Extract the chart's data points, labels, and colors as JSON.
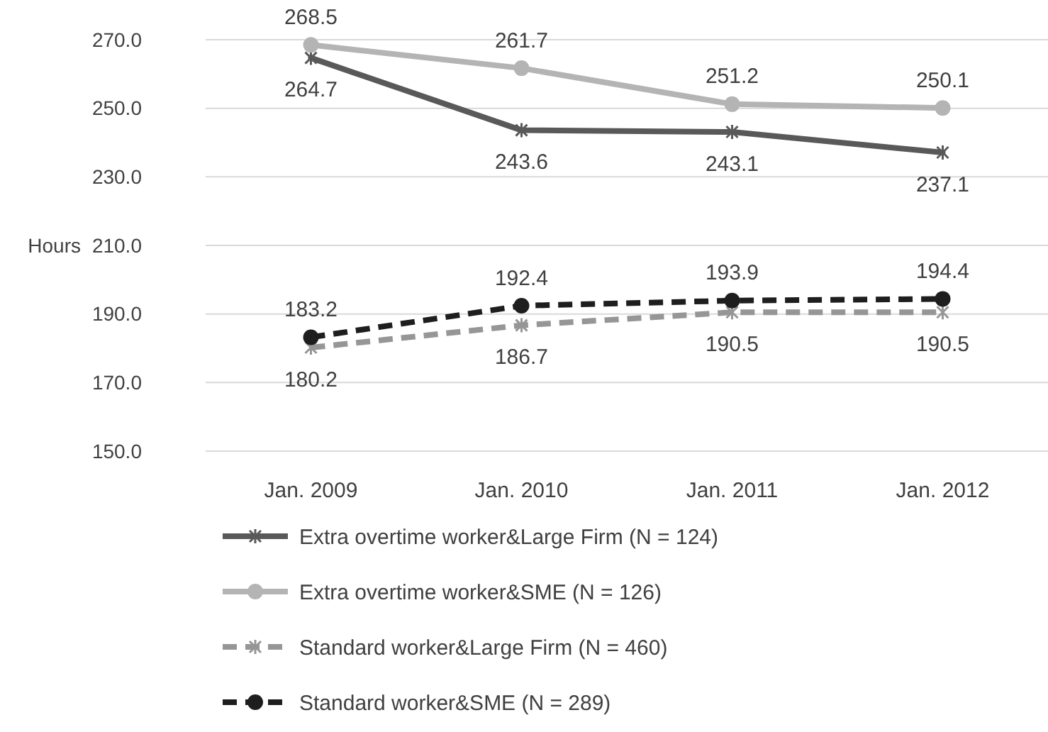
{
  "chart_data": {
    "type": "line",
    "ylabel": "Hours",
    "categories": [
      "Jan. 2009",
      "Jan. 2010",
      "Jan. 2011",
      "Jan. 2012"
    ],
    "ylim": [
      150,
      270
    ],
    "yticks": [
      {
        "value": 150,
        "label": "150.0"
      },
      {
        "value": 170,
        "label": "170.0"
      },
      {
        "value": 190,
        "label": "190.0"
      },
      {
        "value": 210,
        "label": "210.0"
      },
      {
        "value": 230,
        "label": "230.0"
      },
      {
        "value": 250,
        "label": "250.0"
      },
      {
        "value": 270,
        "label": "270.0"
      }
    ],
    "grid": "y",
    "legend": "bottom",
    "data_labels": true,
    "series": [
      {
        "name": "Extra overtime worker&Large Firm (N = 124)",
        "color": "#595959",
        "marker": "cross",
        "line_style": "solid",
        "values": [
          264.7,
          243.6,
          243.1,
          237.1
        ]
      },
      {
        "name": "Extra overtime worker&SME (N = 126)",
        "color": "#b4b4b4",
        "marker": "circle",
        "line_style": "solid",
        "values": [
          268.5,
          261.7,
          251.2,
          250.1
        ]
      },
      {
        "name": "Standard worker&Large Firm (N = 460)",
        "color": "#969696",
        "marker": "cross",
        "line_style": "dashed",
        "values": [
          180.2,
          186.7,
          190.5,
          190.5
        ]
      },
      {
        "name": "Standard worker&SME (N = 289)",
        "color": "#1e1e1e",
        "marker": "circle",
        "line_style": "dashed",
        "values": [
          183.2,
          192.4,
          193.9,
          194.4
        ]
      }
    ]
  }
}
